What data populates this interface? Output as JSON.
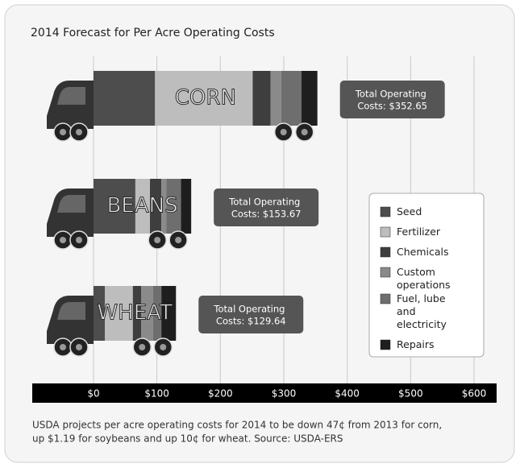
{
  "chart_data": {
    "type": "bar",
    "orientation": "horizontal",
    "stacked": true,
    "title": "2014 Forecast for Per Acre Operating Costs",
    "categories": [
      "CORN",
      "BEANS",
      "WHEAT"
    ],
    "series": [
      {
        "name": "Seed",
        "color": "#4d4d4d",
        "values": [
          97,
          66,
          18
        ]
      },
      {
        "name": "Fertilizer",
        "color": "#bdbdbd",
        "values": [
          154,
          23,
          44
        ]
      },
      {
        "name": "Chemicals",
        "color": "#3e3e3e",
        "values": [
          28,
          18,
          13
        ]
      },
      {
        "name": "Custom operations",
        "color": "#8a8a8a",
        "values": [
          17,
          8,
          19
        ]
      },
      {
        "name": "Fuel, lube and electricity",
        "color": "#6e6e6e",
        "values": [
          32,
          23,
          13
        ]
      },
      {
        "name": "Repairs",
        "color": "#1e1e1e",
        "values": [
          25,
          16,
          23
        ]
      }
    ],
    "annotations": [
      "Total Operating Costs: $352.65",
      "Total Operating Costs: $153.67",
      "Total Operating Costs: $129.64"
    ],
    "xlim": [
      0,
      600
    ],
    "xticks": [
      {
        "value": 0,
        "label": "$0"
      },
      {
        "value": 100,
        "label": "$100"
      },
      {
        "value": 200,
        "label": "$200"
      },
      {
        "value": 300,
        "label": "$300"
      },
      {
        "value": 400,
        "label": "$400"
      },
      {
        "value": 500,
        "label": "$500"
      },
      {
        "value": 600,
        "label": "$600"
      }
    ],
    "grid": true,
    "legend": "right",
    "note": [
      "USDA projects per acre operating costs for 2014 to be down 47¢ from 2013 for corn,",
      "up $1.19 for soybeans and up 10¢ for wheat.  Source: USDA-ERS"
    ]
  }
}
